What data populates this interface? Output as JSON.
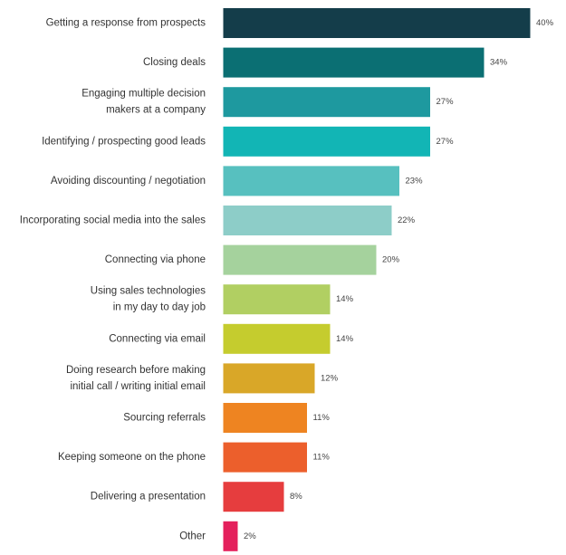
{
  "chart_data": {
    "type": "bar",
    "orientation": "horizontal",
    "categories": [
      [
        "Getting a response from prospects"
      ],
      [
        "Closing deals"
      ],
      [
        "Engaging multiple decision",
        "makers at a company"
      ],
      [
        "Identifying / prospecting good leads"
      ],
      [
        "Avoiding discounting / negotiation"
      ],
      [
        "Incorporating social media into the sales"
      ],
      [
        "Connecting via phone"
      ],
      [
        "Using sales technologies",
        "in my day to day job"
      ],
      [
        "Connecting via email"
      ],
      [
        "Doing research before making",
        "initial call / writing initial email"
      ],
      [
        "Sourcing referrals"
      ],
      [
        "Keeping someone on the phone"
      ],
      [
        "Delivering a presentation"
      ],
      [
        "Other"
      ]
    ],
    "values": [
      40,
      34,
      27,
      27,
      23,
      22,
      20,
      14,
      14,
      12,
      11,
      11,
      8,
      2
    ],
    "value_labels": [
      "40%",
      "34%",
      "27%",
      "27%",
      "23%",
      "22%",
      "20%",
      "14%",
      "14%",
      "12%",
      "11%",
      "11%",
      "8%",
      "2%"
    ],
    "colors": [
      "#143d4a",
      "#0b6f73",
      "#1e999f",
      "#12b5b5",
      "#57c0bf",
      "#8dcdc8",
      "#a5d29d",
      "#b1cf62",
      "#c5cc2e",
      "#d9a728",
      "#ee8421",
      "#ec5f2c",
      "#e63d3e",
      "#e4205c"
    ],
    "xlim": [
      0,
      40
    ],
    "grid": false,
    "legend": "none",
    "title": "",
    "xlabel": "",
    "ylabel": ""
  }
}
